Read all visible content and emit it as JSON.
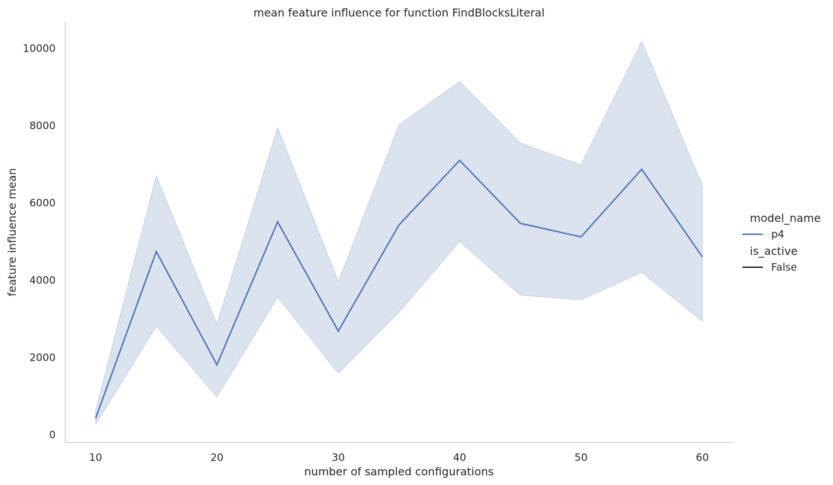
{
  "chart_data": {
    "type": "line",
    "title": "mean feature influence for function FindBlocksLiteral",
    "xlabel": "number of sampled configurations",
    "ylabel": "feature influence mean",
    "xlim": [
      7.5,
      62.5
    ],
    "ylim": [
      -200,
      10700
    ],
    "xticks": [
      10,
      20,
      30,
      40,
      50,
      60
    ],
    "yticks": [
      0,
      2000,
      4000,
      6000,
      8000,
      10000
    ],
    "x": [
      10,
      15,
      20,
      25,
      30,
      35,
      40,
      45,
      50,
      55,
      60
    ],
    "series": [
      {
        "name": "p4",
        "color": "#4c72b0",
        "values": [
          420,
          4740,
          1810,
          5510,
          2680,
          5430,
          7100,
          5470,
          5120,
          6870,
          4600
        ],
        "ci_upper": [
          620,
          6700,
          2860,
          7950,
          3960,
          8020,
          9140,
          7550,
          6980,
          10180,
          6450
        ],
        "ci_lower": [
          270,
          2800,
          980,
          3560,
          1590,
          3170,
          5000,
          3610,
          3490,
          4200,
          2940
        ]
      }
    ],
    "grid": false,
    "legend": {
      "placement": "right",
      "hue_title": "model_name",
      "hue_entries": [
        {
          "label": "p4",
          "color": "#4c72b0"
        }
      ],
      "style_title": "is_active",
      "style_entries": [
        {
          "label": "False",
          "color": "#262626"
        }
      ]
    }
  }
}
